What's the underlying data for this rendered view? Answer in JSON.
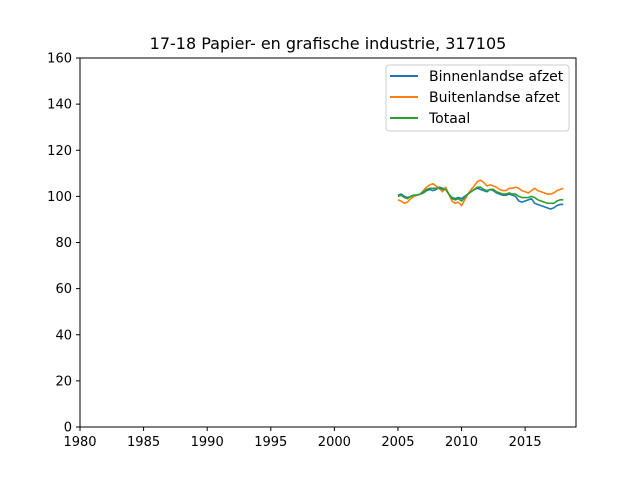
{
  "chart_data": {
    "type": "line",
    "title": "17-18 Papier- en grafische industrie, 317105",
    "xlabel": "",
    "ylabel": "",
    "xlim": [
      1980,
      2019
    ],
    "ylim": [
      0,
      160
    ],
    "xticks": [
      1980,
      1985,
      1990,
      1995,
      2000,
      2005,
      2010,
      2015
    ],
    "yticks": [
      0,
      20,
      40,
      60,
      80,
      100,
      120,
      140,
      160
    ],
    "grid": false,
    "legend_position": "top-right",
    "series": [
      {
        "name": "Binnenlandse afzet",
        "color": "#1f77b4",
        "x": [
          2005.0,
          2005.25,
          2005.5,
          2005.75,
          2006.0,
          2006.25,
          2006.5,
          2006.75,
          2007.0,
          2007.25,
          2007.5,
          2007.75,
          2008.0,
          2008.25,
          2008.5,
          2008.75,
          2009.0,
          2009.25,
          2009.5,
          2009.75,
          2010.0,
          2010.25,
          2010.5,
          2010.75,
          2011.0,
          2011.25,
          2011.5,
          2011.75,
          2012.0,
          2012.25,
          2012.5,
          2012.75,
          2013.0,
          2013.25,
          2013.5,
          2013.75,
          2014.0,
          2014.25,
          2014.5,
          2014.75,
          2015.0,
          2015.25,
          2015.5,
          2015.75,
          2016.0,
          2016.25,
          2016.5,
          2016.75,
          2017.0,
          2017.25,
          2017.5,
          2017.75,
          2018.0
        ],
        "values": [
          100.5,
          101,
          100,
          99.5,
          100,
          100.5,
          100.5,
          101,
          101.5,
          102.5,
          103,
          102.5,
          103,
          104,
          103.5,
          103,
          101,
          99.5,
          99,
          99.5,
          99,
          100,
          101,
          102,
          103,
          103.5,
          103,
          102.5,
          102,
          103,
          102.5,
          101.5,
          101,
          100.5,
          100.5,
          101,
          100.5,
          100,
          98,
          97.5,
          98,
          98.5,
          99,
          97,
          96.5,
          96,
          95.5,
          95,
          94.5,
          95,
          96,
          96.5,
          96.5
        ]
      },
      {
        "name": "Buitenlandse afzet",
        "color": "#ff7f0e",
        "x": [
          2005.0,
          2005.25,
          2005.5,
          2005.75,
          2006.0,
          2006.25,
          2006.5,
          2006.75,
          2007.0,
          2007.25,
          2007.5,
          2007.75,
          2008.0,
          2008.25,
          2008.5,
          2008.75,
          2009.0,
          2009.25,
          2009.5,
          2009.75,
          2010.0,
          2010.25,
          2010.5,
          2010.75,
          2011.0,
          2011.25,
          2011.5,
          2011.75,
          2012.0,
          2012.25,
          2012.5,
          2012.75,
          2013.0,
          2013.25,
          2013.5,
          2013.75,
          2014.0,
          2014.25,
          2014.5,
          2014.75,
          2015.0,
          2015.25,
          2015.5,
          2015.75,
          2016.0,
          2016.25,
          2016.5,
          2016.75,
          2017.0,
          2017.25,
          2017.5,
          2017.75,
          2018.0
        ],
        "values": [
          98.5,
          98,
          97,
          97.5,
          99,
          100,
          100.5,
          101,
          102.5,
          104,
          105,
          105.5,
          104.5,
          103.5,
          102,
          104,
          101,
          98,
          97,
          97.5,
          96,
          98.5,
          101,
          103,
          104.5,
          106.5,
          107,
          106,
          104.5,
          105,
          104.5,
          104,
          103,
          102.5,
          102.5,
          103.5,
          103.5,
          104,
          103.5,
          102.5,
          102,
          101.5,
          102.5,
          103.5,
          102.5,
          102,
          101.5,
          101,
          101,
          101.5,
          102.5,
          103,
          103.5
        ]
      },
      {
        "name": "Totaal",
        "color": "#2ca02c",
        "x": [
          2005.0,
          2005.25,
          2005.5,
          2005.75,
          2006.0,
          2006.25,
          2006.5,
          2006.75,
          2007.0,
          2007.25,
          2007.5,
          2007.75,
          2008.0,
          2008.25,
          2008.5,
          2008.75,
          2009.0,
          2009.25,
          2009.5,
          2009.75,
          2010.0,
          2010.25,
          2010.5,
          2010.75,
          2011.0,
          2011.25,
          2011.5,
          2011.75,
          2012.0,
          2012.25,
          2012.5,
          2012.75,
          2013.0,
          2013.25,
          2013.5,
          2013.75,
          2014.0,
          2014.25,
          2014.5,
          2014.75,
          2015.0,
          2015.25,
          2015.5,
          2015.75,
          2016.0,
          2016.25,
          2016.5,
          2016.75,
          2017.0,
          2017.25,
          2017.5,
          2017.75,
          2018.0
        ],
        "values": [
          100,
          100.5,
          99.5,
          99,
          100,
          100.5,
          100.5,
          101,
          102,
          103,
          103.5,
          103.5,
          103.5,
          103.5,
          103,
          103,
          101,
          99,
          98.5,
          99,
          98,
          99.5,
          101,
          102,
          103,
          104,
          104,
          103,
          102.5,
          103,
          103,
          102,
          101.5,
          101,
          101,
          101.5,
          101,
          101,
          100,
          99.5,
          99.5,
          99.5,
          100,
          99.5,
          98.5,
          98,
          97.5,
          97,
          97,
          97,
          98,
          98.5,
          98.5
        ]
      }
    ]
  }
}
